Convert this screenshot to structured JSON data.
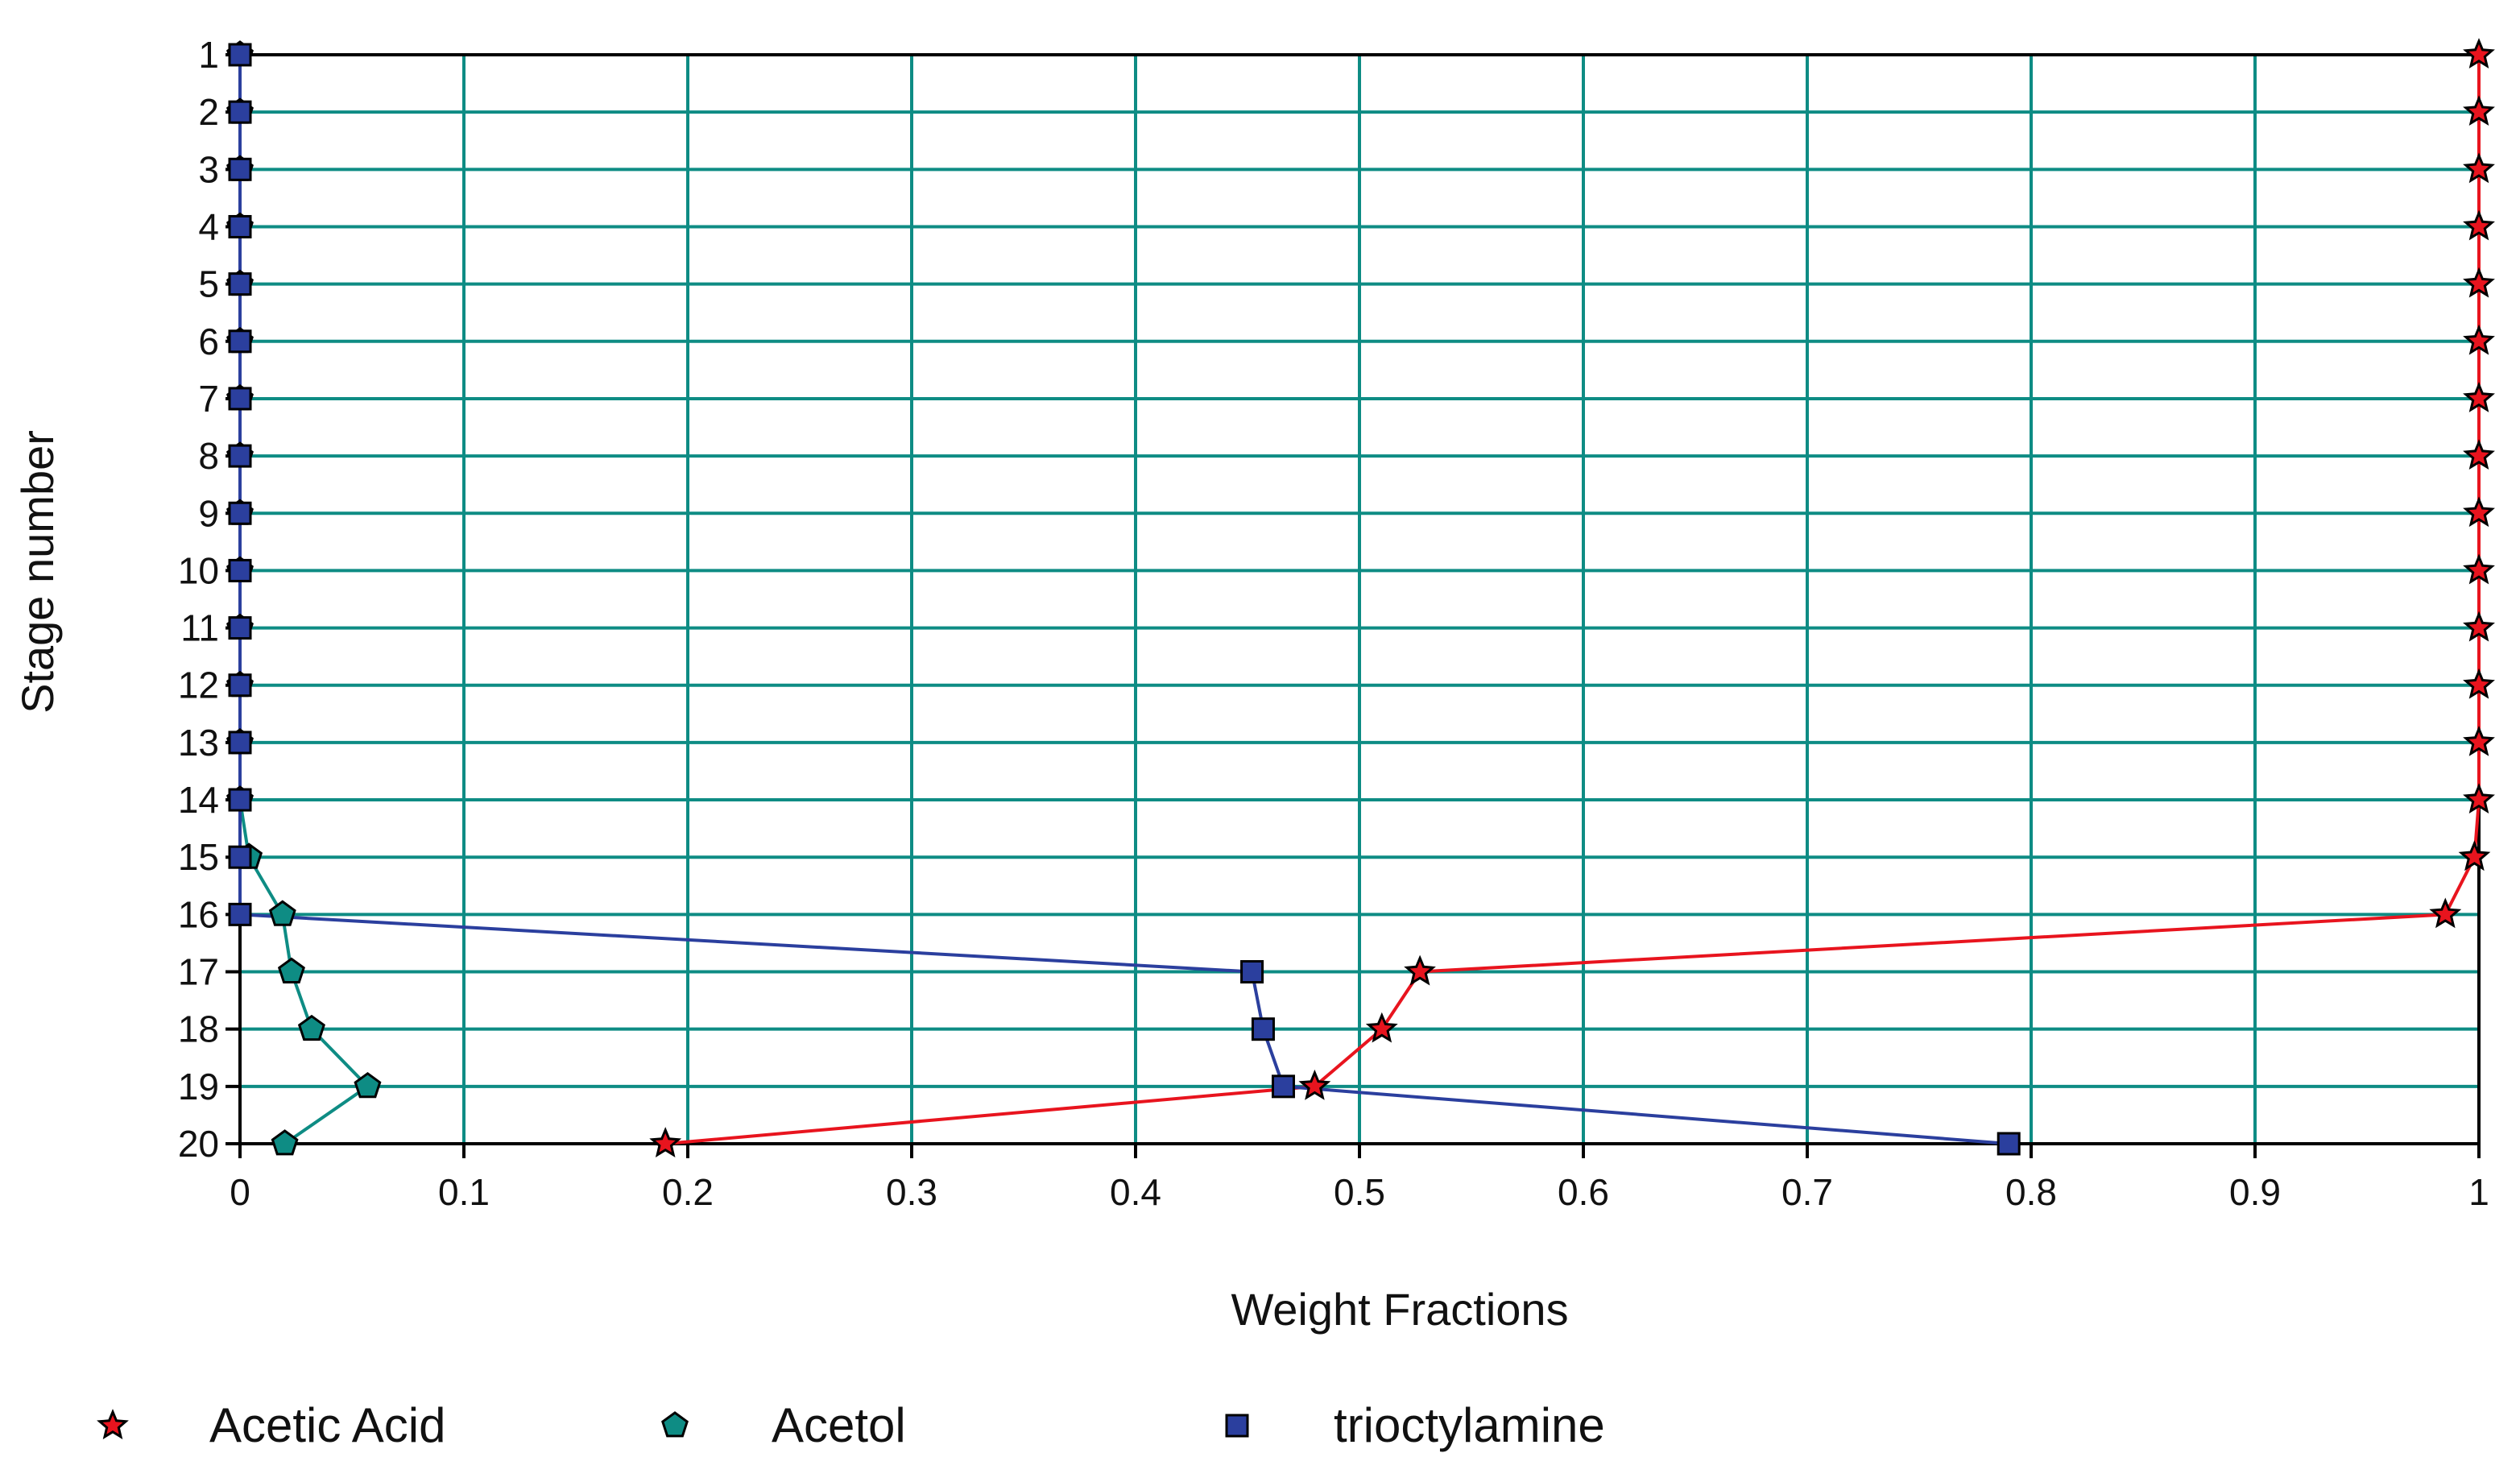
{
  "chart_data": {
    "type": "line",
    "orientation": "horizontal-x-values-vertical-stages",
    "xlabel": "Weight Fractions",
    "ylabel": "Stage number",
    "xlim": [
      0,
      1
    ],
    "ylim": [
      1,
      20
    ],
    "y_inverted": true,
    "grid": true,
    "legend_position": "bottom",
    "x_ticks": [
      "0",
      "0.1",
      "0.2",
      "0.3",
      "0.4",
      "0.5",
      "0.6",
      "0.7",
      "0.8",
      "0.9",
      "1"
    ],
    "y_ticks": [
      "1",
      "2",
      "3",
      "4",
      "5",
      "6",
      "7",
      "8",
      "9",
      "10",
      "11",
      "12",
      "13",
      "14",
      "15",
      "16",
      "17",
      "18",
      "19",
      "20"
    ],
    "stages": [
      1,
      2,
      3,
      4,
      5,
      6,
      7,
      8,
      9,
      10,
      11,
      12,
      13,
      14,
      15,
      16,
      17,
      18,
      19,
      20
    ],
    "series": [
      {
        "name": "Acetic Acid",
        "color": "#e8141e",
        "marker": "star",
        "values": [
          1.0,
          1.0,
          1.0,
          1.0,
          1.0,
          1.0,
          1.0,
          1.0,
          1.0,
          1.0,
          1.0,
          1.0,
          1.0,
          1.0,
          0.998,
          0.985,
          0.527,
          0.51,
          0.48,
          0.19
        ]
      },
      {
        "name": "Acetol",
        "color": "#0e8c84",
        "marker": "pentagon",
        "values": [
          0.0,
          0.0,
          0.0,
          0.0,
          0.0,
          0.0,
          0.0,
          0.0,
          0.0,
          0.0,
          0.0,
          0.0,
          0.0,
          0.0,
          0.004,
          0.019,
          0.023,
          0.032,
          0.057,
          0.02
        ]
      },
      {
        "name": "trioctylamine",
        "color": "#2b3f9e",
        "marker": "square",
        "values": [
          0.0,
          0.0,
          0.0,
          0.0,
          0.0,
          0.0,
          0.0,
          0.0,
          0.0,
          0.0,
          0.0,
          0.0,
          0.0,
          0.0,
          0.0,
          0.0,
          0.452,
          0.457,
          0.466,
          0.79
        ]
      }
    ]
  }
}
